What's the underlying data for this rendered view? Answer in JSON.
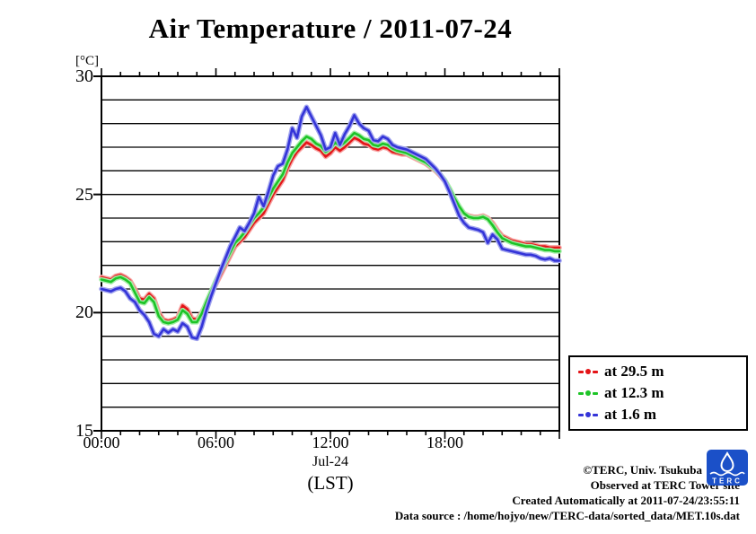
{
  "annotations": {
    "copyright": "©TERC, Univ. Tsukuba",
    "observed": "Observed at TERC Tower site",
    "created": "Created Automatically at 2011-07-24/23:55:11",
    "data_source": "Data source : /home/hojyo/new/TERC-data/sorted_data/MET.10s.dat"
  },
  "logo": {
    "text": "TERC",
    "color": "#1b50c8"
  },
  "chart_data": {
    "type": "line",
    "title": "Air Temperature / 2011-07-24",
    "ylabel": "[°C]",
    "xlabel": "(LST)",
    "x_date_label": "Jul-24",
    "xlim": [
      0,
      24
    ],
    "ylim": [
      15,
      30
    ],
    "grid_step": 1,
    "grid_on": true,
    "legend_position": "outside-right-bottom",
    "y_ticks": [
      15,
      20,
      25,
      30
    ],
    "x_label_hours": [
      0,
      6,
      12,
      18
    ],
    "x_tick_labels": [
      "00:00",
      "06:00",
      "12:00",
      "18:00"
    ],
    "x_minor_tick_hours": 1,
    "x_major_tick_hours": 6,
    "x_step_hours": 0.25,
    "series": [
      {
        "name": "at 29.5 m",
        "height_m": 29.5,
        "color": "#e41417",
        "halo": "#f7a0a0",
        "values": [
          21.5,
          21.45,
          21.4,
          21.55,
          21.6,
          21.5,
          21.35,
          21.0,
          20.6,
          20.55,
          20.8,
          20.6,
          20.0,
          19.7,
          19.65,
          19.7,
          19.8,
          20.3,
          20.15,
          19.75,
          19.7,
          20.0,
          20.4,
          20.8,
          21.2,
          21.6,
          22.0,
          22.4,
          22.8,
          23.0,
          23.2,
          23.5,
          23.8,
          24.0,
          24.2,
          24.6,
          25.0,
          25.3,
          25.6,
          26.1,
          26.5,
          26.8,
          27.0,
          27.2,
          27.1,
          26.95,
          26.85,
          26.6,
          26.75,
          27.0,
          26.85,
          27.0,
          27.2,
          27.4,
          27.3,
          27.15,
          27.1,
          26.95,
          26.9,
          27.0,
          26.95,
          26.8,
          26.75,
          26.7,
          26.7,
          26.6,
          26.5,
          26.4,
          26.3,
          26.15,
          26.0,
          25.8,
          25.55,
          25.2,
          24.8,
          24.45,
          24.2,
          24.1,
          24.05,
          24.05,
          24.1,
          24.0,
          23.8,
          23.5,
          23.25,
          23.15,
          23.05,
          23.0,
          22.95,
          22.9,
          22.9,
          22.85,
          22.8,
          22.8,
          22.75,
          22.75,
          22.75
        ]
      },
      {
        "name": "at 12.3 m",
        "height_m": 12.3,
        "color": "#1dc427",
        "halo": "#a5eda8",
        "values": [
          21.4,
          21.35,
          21.3,
          21.45,
          21.5,
          21.4,
          21.25,
          20.85,
          20.45,
          20.4,
          20.65,
          20.45,
          19.85,
          19.6,
          19.55,
          19.6,
          19.7,
          20.1,
          19.95,
          19.6,
          19.6,
          19.95,
          20.45,
          20.9,
          21.35,
          21.75,
          22.15,
          22.55,
          22.95,
          23.15,
          23.4,
          23.7,
          24.0,
          24.2,
          24.45,
          24.85,
          25.25,
          25.55,
          25.85,
          26.35,
          26.75,
          27.0,
          27.25,
          27.45,
          27.35,
          27.15,
          27.05,
          26.8,
          26.95,
          27.2,
          27.05,
          27.2,
          27.4,
          27.6,
          27.5,
          27.35,
          27.3,
          27.1,
          27.05,
          27.15,
          27.1,
          26.95,
          26.85,
          26.8,
          26.75,
          26.65,
          26.55,
          26.45,
          26.35,
          26.2,
          26.05,
          25.85,
          25.6,
          25.25,
          24.85,
          24.5,
          24.2,
          24.05,
          24.0,
          24.0,
          24.05,
          23.95,
          23.7,
          23.4,
          23.15,
          23.05,
          22.95,
          22.9,
          22.85,
          22.8,
          22.8,
          22.75,
          22.7,
          22.65,
          22.65,
          22.6,
          22.6
        ]
      },
      {
        "name": "at 1.6 m",
        "height_m": 1.6,
        "color": "#3434d8",
        "halo": "#a0a3ee",
        "values": [
          21.0,
          20.95,
          20.9,
          21.0,
          21.05,
          20.9,
          20.6,
          20.45,
          20.1,
          19.9,
          19.6,
          19.1,
          19.0,
          19.3,
          19.15,
          19.3,
          19.2,
          19.55,
          19.4,
          18.95,
          18.9,
          19.4,
          20.1,
          20.7,
          21.25,
          21.8,
          22.3,
          22.8,
          23.2,
          23.6,
          23.45,
          23.8,
          24.2,
          24.9,
          24.5,
          25.1,
          25.8,
          26.2,
          26.3,
          26.9,
          27.8,
          27.4,
          28.3,
          28.7,
          28.3,
          27.9,
          27.5,
          26.9,
          27.0,
          27.6,
          27.1,
          27.55,
          27.9,
          28.35,
          28.0,
          27.8,
          27.7,
          27.3,
          27.25,
          27.45,
          27.35,
          27.1,
          27.0,
          26.95,
          26.9,
          26.8,
          26.7,
          26.6,
          26.5,
          26.3,
          26.1,
          25.85,
          25.55,
          25.1,
          24.6,
          24.1,
          23.8,
          23.6,
          23.55,
          23.5,
          23.4,
          22.95,
          23.3,
          23.1,
          22.7,
          22.65,
          22.6,
          22.55,
          22.5,
          22.45,
          22.45,
          22.4,
          22.3,
          22.25,
          22.3,
          22.2,
          22.2
        ]
      }
    ]
  }
}
